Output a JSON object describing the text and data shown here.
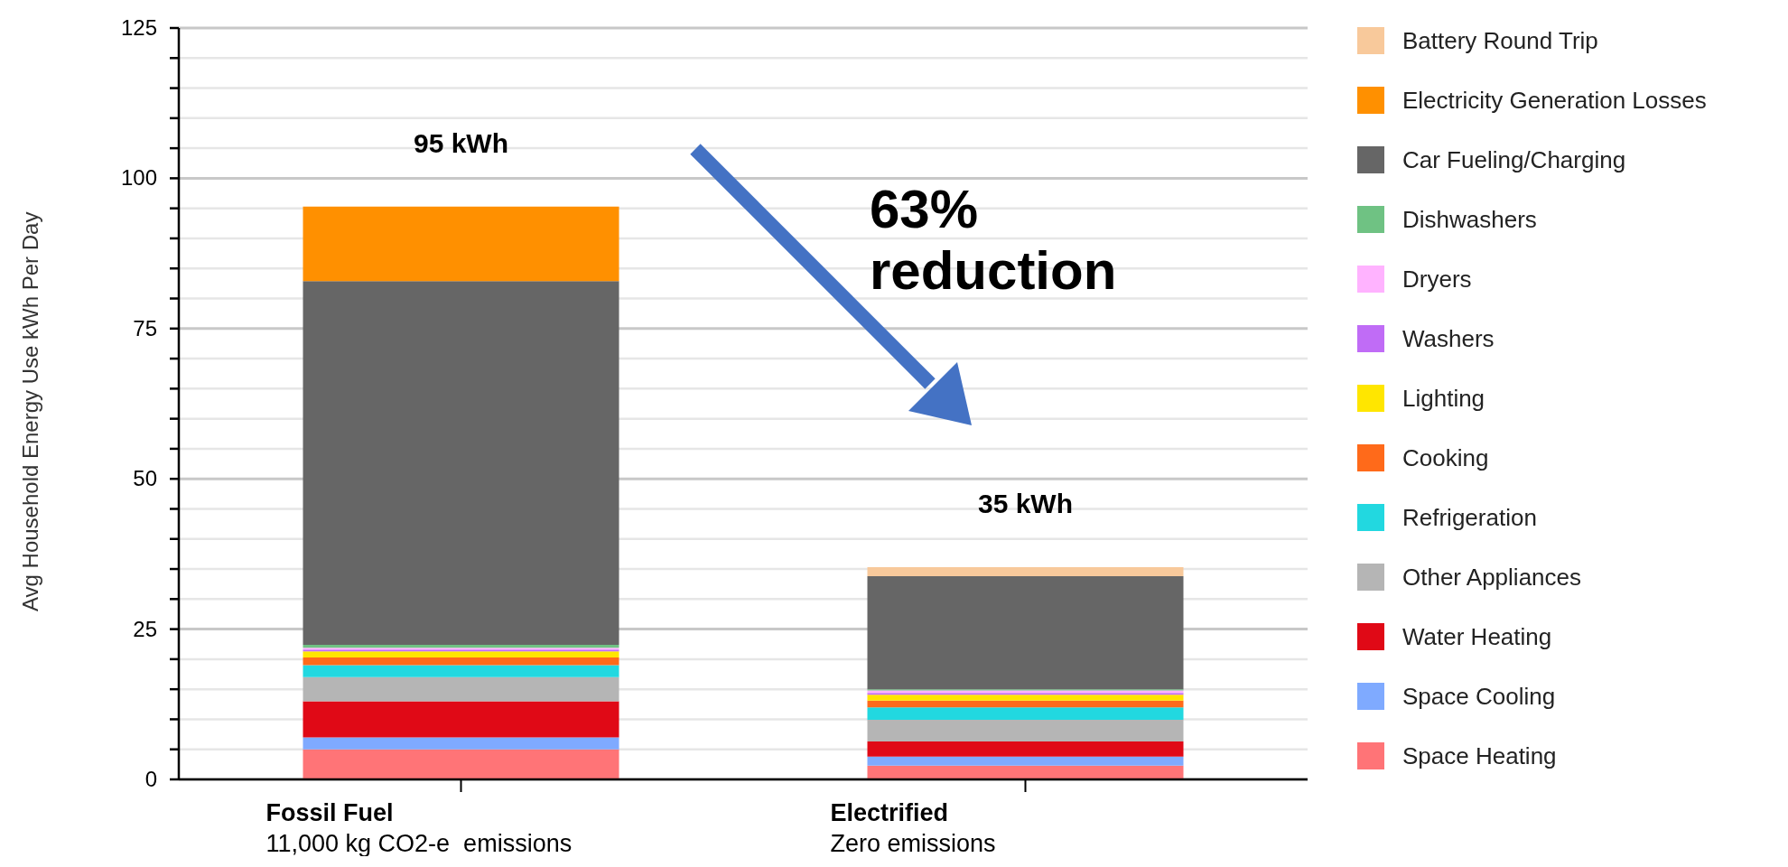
{
  "chart_data": {
    "type": "bar",
    "stacked": true,
    "ylabel": "Avg Household Energy Use kWh Per Day",
    "categories": [
      "Fossil Fuel",
      "Electrified"
    ],
    "series": [
      {
        "name": "Space Heating",
        "color": "#ff7477",
        "values": [
          5,
          2.3
        ]
      },
      {
        "name": "Space Cooling",
        "color": "#7faaff",
        "values": [
          2,
          1.5
        ]
      },
      {
        "name": "Water Heating",
        "color": "#e00916",
        "values": [
          6,
          2.5
        ]
      },
      {
        "name": "Other Appliances",
        "color": "#b5b5b5",
        "values": [
          4,
          3.6
        ]
      },
      {
        "name": "Refrigeration",
        "color": "#22d8e0",
        "values": [
          2,
          2.1
        ]
      },
      {
        "name": "Cooking",
        "color": "#ff6a1a",
        "values": [
          1.3,
          1.1
        ]
      },
      {
        "name": "Lighting",
        "color": "#ffe600",
        "values": [
          1,
          1
        ]
      },
      {
        "name": "Washers",
        "color": "#c06cf6",
        "values": [
          0.3,
          0.3
        ]
      },
      {
        "name": "Dryers",
        "color": "#ffb3ff",
        "values": [
          0.3,
          0.4
        ]
      },
      {
        "name": "Dishwashers",
        "color": "#6fc283",
        "values": [
          0.5,
          0.2
        ]
      },
      {
        "name": "Car Fueling/Charging",
        "color": "#666666",
        "values": [
          60.5,
          18.8
        ]
      },
      {
        "name": "Electricity Generation Losses",
        "color": "#ff9000",
        "values": [
          12.4,
          0
        ]
      },
      {
        "name": "Battery Round Trip",
        "color": "#f8c99b",
        "values": [
          0,
          1.5
        ]
      }
    ],
    "ylim": [
      0,
      125
    ],
    "yticks": [
      0,
      {
        "value": 5,
        "label": null
      },
      {
        "value": 10,
        "label": null
      },
      {
        "value": 15,
        "label": null
      },
      {
        "value": 20,
        "label": null
      },
      25,
      {
        "value": 30,
        "label": null
      },
      {
        "value": 35,
        "label": null
      },
      {
        "value": 40,
        "label": null
      },
      {
        "value": 45,
        "label": null
      },
      50,
      {
        "value": 55,
        "label": null
      },
      {
        "value": 60,
        "label": null
      },
      {
        "value": 65,
        "label": null
      },
      {
        "value": 70,
        "label": null
      },
      75,
      {
        "value": 80,
        "label": null
      },
      {
        "value": 85,
        "label": null
      },
      {
        "value": 90,
        "label": null
      },
      {
        "value": 95,
        "label": null
      },
      100,
      {
        "value": 105,
        "label": null
      },
      {
        "value": 110,
        "label": null
      },
      {
        "value": 115,
        "label": null
      },
      {
        "value": 120,
        "label": null
      },
      125
    ],
    "grid": "y",
    "legend": "right",
    "annotations": [
      "95 kWh",
      "35 kWh",
      "11,000 kg CO2-e  emissions",
      "Zero emissions",
      "63% reduction"
    ]
  }
}
